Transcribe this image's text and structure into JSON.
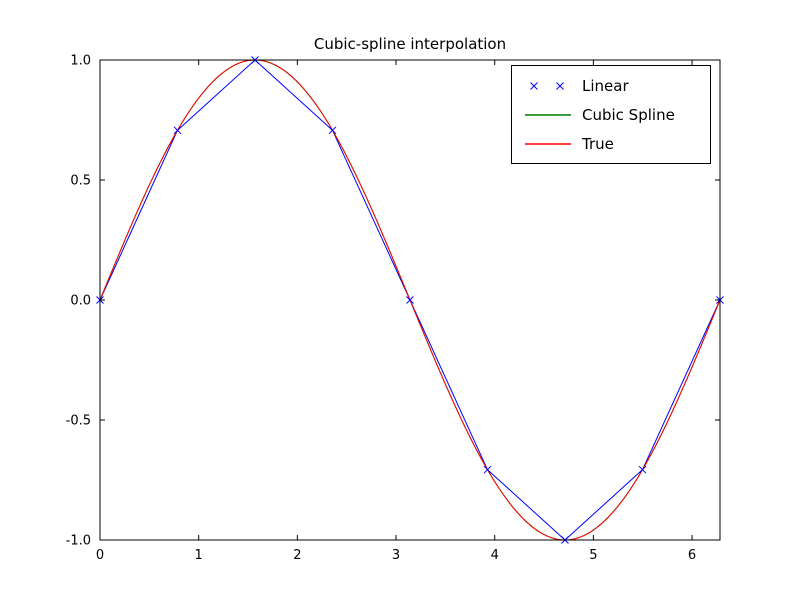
{
  "chart_data": {
    "type": "line",
    "title": "Cubic-spline interpolation",
    "xlabel": "",
    "ylabel": "",
    "xlim": [
      0,
      6.2832
    ],
    "ylim": [
      -1.0,
      1.0
    ],
    "x_ticks": [
      0,
      1,
      2,
      3,
      4,
      5,
      6
    ],
    "y_ticks": [
      -1.0,
      -0.5,
      0.0,
      0.5,
      1.0
    ],
    "grid": false,
    "legend_position": "upper right",
    "knots": {
      "x": [
        0.0,
        0.7854,
        1.5708,
        2.3562,
        3.1416,
        3.927,
        4.7124,
        5.4978,
        6.2832
      ],
      "y": [
        0.0,
        0.7071,
        1.0,
        0.7071,
        0.0,
        -0.7071,
        -1.0,
        -0.7071,
        0.0
      ]
    },
    "series": [
      {
        "name": "Linear",
        "color": "#0000ff",
        "style": "piecewise-linear-with-x-markers"
      },
      {
        "name": "Cubic Spline",
        "color": "#008000",
        "style": "cubic-spline-through-knots"
      },
      {
        "name": "True",
        "color": "#ff0000",
        "style": "sine-function"
      }
    ]
  },
  "axes": {
    "x_tick_labels": [
      "0",
      "1",
      "2",
      "3",
      "4",
      "5",
      "6"
    ],
    "y_tick_labels": [
      "-1.0",
      "-0.5",
      "0.0",
      "0.5",
      "1.0"
    ],
    "frame_color": "#000000"
  },
  "legend": {
    "items": [
      {
        "label": "Linear",
        "color": "#0000ff",
        "marker": "x"
      },
      {
        "label": "Cubic Spline",
        "color": "#008000",
        "marker": "line"
      },
      {
        "label": "True",
        "color": "#ff0000",
        "marker": "line"
      }
    ]
  }
}
